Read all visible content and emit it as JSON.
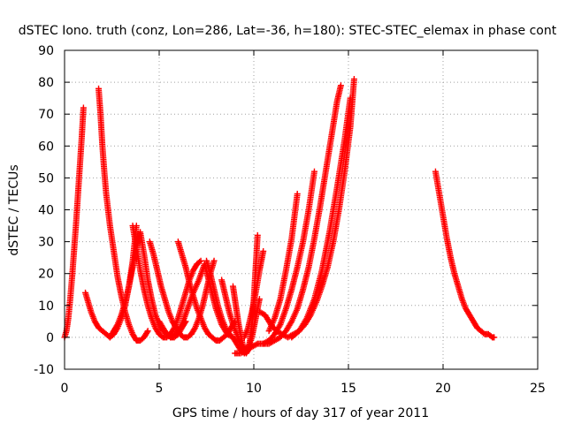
{
  "chart_data": {
    "type": "scatter",
    "title": "dSTEC Iono. truth (conz, Lon=286, Lat=-36, h=180): STEC-STEC_elemax in phase cont",
    "xlabel": "GPS time / hours of day 317 of year 2011",
    "ylabel": "dSTEC  / TECUs",
    "xlim": [
      0,
      25
    ],
    "ylim": [
      -10,
      90
    ],
    "xticks": [
      "0",
      "5",
      "10",
      "15",
      "20",
      "25"
    ],
    "yticks": [
      "-10",
      "0",
      "10",
      "20",
      "30",
      "40",
      "50",
      "60",
      "70",
      "80",
      "90"
    ],
    "grid": true,
    "marker": "+",
    "color": "#ff0000",
    "series": [
      {
        "x": [
          0.0,
          0.1,
          0.2,
          0.3,
          0.4,
          0.5,
          0.6,
          0.7,
          0.8,
          0.9,
          1.0
        ],
        "y": [
          0,
          2,
          6,
          12,
          19,
          27,
          35,
          44,
          53,
          62,
          72
        ]
      },
      {
        "x": [
          1.1,
          1.2,
          1.4,
          1.6,
          1.8,
          2.0,
          2.2,
          2.4,
          2.6,
          2.8,
          3.0,
          3.2,
          3.4,
          3.6,
          3.8
        ],
        "y": [
          14,
          12,
          8,
          5,
          3,
          2,
          1,
          0,
          1,
          3,
          6,
          10,
          16,
          24,
          35
        ]
      },
      {
        "x": [
          1.8,
          1.9,
          2.0,
          2.1,
          2.2,
          2.4,
          2.6,
          2.8,
          3.0,
          3.2,
          3.4,
          3.6,
          3.8,
          4.0,
          4.2,
          4.4
        ],
        "y": [
          78,
          70,
          60,
          52,
          45,
          35,
          27,
          19,
          13,
          8,
          4,
          1,
          -1,
          -1,
          0,
          2
        ]
      },
      {
        "x": [
          2.4,
          2.6,
          2.8,
          3.0,
          3.2,
          3.4,
          3.6,
          3.8,
          4.0,
          4.2,
          4.4,
          4.6,
          4.8,
          5.0,
          5.2,
          5.4,
          5.6,
          5.8,
          6.0,
          6.2,
          6.4
        ],
        "y": [
          0,
          2,
          4,
          7,
          11,
          16,
          22,
          28,
          33,
          26,
          18,
          12,
          7,
          4,
          2,
          1,
          0,
          0,
          1,
          3,
          5
        ]
      },
      {
        "x": [
          3.6,
          3.8,
          4.0,
          4.2,
          4.4,
          4.6,
          4.8,
          5.0,
          5.2,
          5.4,
          5.6,
          5.8,
          6.0,
          6.2,
          6.4,
          6.6,
          6.8,
          7.0,
          7.2
        ],
        "y": [
          35,
          28,
          21,
          15,
          10,
          6,
          3,
          1,
          0,
          0,
          1,
          3,
          6,
          10,
          14,
          18,
          21,
          23,
          24
        ]
      },
      {
        "x": [
          4.5,
          4.7,
          4.9,
          5.1,
          5.3,
          5.5,
          5.7,
          5.9,
          6.1,
          6.3,
          6.5,
          6.7,
          6.9,
          7.1,
          7.3,
          7.5,
          7.7,
          7.9
        ],
        "y": [
          30,
          26,
          21,
          16,
          12,
          8,
          5,
          3,
          1,
          0,
          0,
          1,
          3,
          6,
          10,
          15,
          20,
          24
        ]
      },
      {
        "x": [
          5.0,
          5.3,
          5.6,
          5.9,
          6.2,
          6.5,
          6.8,
          7.1,
          7.4,
          7.7,
          8.0,
          8.3,
          8.6,
          8.9
        ],
        "y": [
          5,
          2,
          0,
          1,
          4,
          9,
          14,
          18,
          23,
          16,
          9,
          4,
          1,
          0
        ]
      },
      {
        "x": [
          6.0,
          6.2,
          6.4,
          6.6,
          6.8,
          7.0,
          7.2,
          7.4,
          7.6,
          7.8,
          8.0,
          8.2,
          8.4,
          8.6,
          8.8,
          9.0
        ],
        "y": [
          30,
          26,
          22,
          17,
          13,
          9,
          6,
          3,
          1,
          0,
          -1,
          -1,
          0,
          1,
          3,
          5
        ]
      },
      {
        "x": [
          7.5,
          7.7,
          7.9,
          8.1,
          8.3,
          8.5,
          8.7,
          8.9,
          9.1,
          9.3,
          9.5,
          9.7,
          9.9
        ],
        "y": [
          24,
          20,
          15,
          10,
          6,
          3,
          1,
          0,
          -2,
          -4,
          -5,
          -4,
          -2
        ]
      },
      {
        "x": [
          8.3,
          8.5,
          8.7,
          8.9,
          9.1,
          9.3,
          9.5,
          9.7,
          9.9,
          10.1,
          10.3
        ],
        "y": [
          18,
          13,
          8,
          4,
          1,
          -2,
          -4,
          -3,
          0,
          6,
          12
        ]
      },
      {
        "x": [
          8.9,
          9.0,
          9.1,
          9.2,
          9.3,
          9.4,
          9.5,
          9.6,
          9.7,
          9.8,
          9.9,
          10.0,
          10.1,
          10.2
        ],
        "y": [
          16,
          12,
          8,
          4,
          1,
          -2,
          -4,
          -5,
          -4,
          -1,
          4,
          12,
          22,
          32
        ]
      },
      {
        "x": [
          9.0,
          9.3,
          9.6,
          9.9,
          10.2,
          10.5,
          10.8,
          11.1,
          11.4,
          11.7,
          12.0,
          12.3,
          12.6,
          12.9,
          13.2,
          13.5,
          13.8,
          14.1,
          14.4,
          14.6
        ],
        "y": [
          -5,
          -5,
          -4,
          -3,
          -2,
          -2,
          -2,
          -1,
          0,
          2,
          5,
          9,
          15,
          22,
          31,
          41,
          52,
          63,
          74,
          79
        ]
      },
      {
        "x": [
          9.5,
          9.7,
          9.9,
          10.1,
          10.3,
          10.5
        ],
        "y": [
          0,
          3,
          8,
          14,
          21,
          27
        ]
      },
      {
        "x": [
          10.3,
          10.6,
          10.9,
          11.2,
          11.5,
          11.8,
          12.1,
          12.4,
          12.7,
          13.0,
          13.3,
          13.6,
          13.9,
          14.2,
          14.5,
          14.8,
          15.1,
          15.3
        ],
        "y": [
          8,
          7,
          4,
          2,
          1,
          0,
          1,
          2,
          4,
          7,
          11,
          16,
          22,
          30,
          40,
          52,
          66,
          81
        ]
      },
      {
        "x": [
          10.5,
          10.8,
          11.1,
          11.4,
          11.7,
          12.0,
          12.3,
          12.6,
          12.9,
          13.2
        ],
        "y": [
          -2,
          -1,
          1,
          4,
          9,
          15,
          22,
          30,
          40,
          52
        ]
      },
      {
        "x": [
          10.8,
          11.1,
          11.4,
          11.7,
          12.0,
          12.3
        ],
        "y": [
          2,
          6,
          12,
          21,
          31,
          45
        ]
      },
      {
        "x": [
          12.0,
          12.4,
          12.8,
          13.2,
          13.6,
          14.0,
          14.4,
          14.8,
          15.1
        ],
        "y": [
          0,
          2,
          6,
          12,
          21,
          33,
          47,
          62,
          75
        ]
      },
      {
        "x": [
          19.6,
          19.8,
          20.0,
          20.2,
          20.4,
          20.6,
          20.8,
          21.0,
          21.2,
          21.4,
          21.6,
          21.8,
          22.0,
          22.2,
          22.4,
          22.6,
          22.7
        ],
        "y": [
          52,
          45,
          38,
          31,
          25,
          20,
          16,
          12,
          9,
          7,
          5,
          3,
          2,
          1,
          1,
          0,
          0
        ]
      }
    ]
  }
}
